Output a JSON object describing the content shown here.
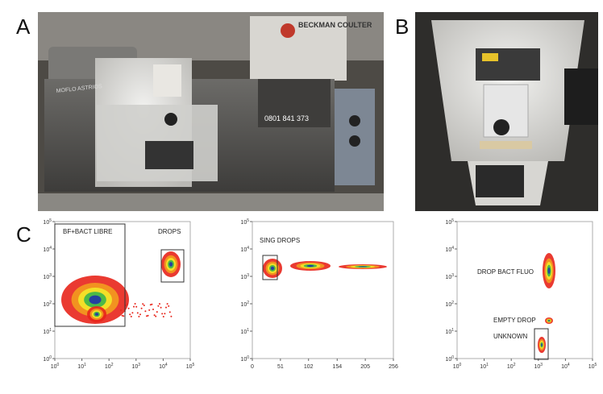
{
  "panels": {
    "a": "A",
    "b": "B",
    "c": "C"
  },
  "photo_a": {
    "brand": "BECKMAN COULTER",
    "model": "MOFLO ASTRIOS",
    "phone": "0801 841 373"
  },
  "plots": [
    {
      "xlim": [
        1,
        100000
      ],
      "ylim": [
        1,
        100000
      ],
      "xlog": true,
      "xticks": [
        {
          "value": 1,
          "base": "10",
          "exp": "0"
        },
        {
          "value": 10,
          "base": "10",
          "exp": "1"
        },
        {
          "value": 100,
          "base": "10",
          "exp": "2"
        },
        {
          "value": 1000,
          "base": "10",
          "exp": "3"
        },
        {
          "value": 10000,
          "base": "10",
          "exp": "4"
        },
        {
          "value": 100000,
          "base": "10",
          "exp": "5"
        }
      ],
      "yticks": [
        {
          "value": 1,
          "base": "10",
          "exp": "0"
        },
        {
          "value": 10,
          "base": "10",
          "exp": "1"
        },
        {
          "value": 100,
          "base": "10",
          "exp": "2"
        },
        {
          "value": 1000,
          "base": "10",
          "exp": "3"
        },
        {
          "value": 10000,
          "base": "10",
          "exp": "4"
        },
        {
          "value": 100000,
          "base": "10",
          "exp": "5"
        }
      ],
      "labels": [
        "BF+BACT LIBRE",
        "DROPS"
      ]
    },
    {
      "xlim": [
        0,
        256
      ],
      "ylim": [
        1,
        100000
      ],
      "xlog": false,
      "xticks": [
        0,
        51,
        102,
        154,
        205,
        256
      ],
      "yticks": [
        {
          "value": 1,
          "base": "10",
          "exp": "0"
        },
        {
          "value": 10,
          "base": "10",
          "exp": "1"
        },
        {
          "value": 100,
          "base": "10",
          "exp": "2"
        },
        {
          "value": 1000,
          "base": "10",
          "exp": "3"
        },
        {
          "value": 10000,
          "base": "10",
          "exp": "4"
        },
        {
          "value": 100000,
          "base": "10",
          "exp": "5"
        }
      ],
      "labels": [
        "SING DROPS"
      ]
    },
    {
      "xlim": [
        1,
        100000
      ],
      "ylim": [
        1,
        100000
      ],
      "xlog": true,
      "xticks": [
        {
          "value": 1,
          "base": "10",
          "exp": "0"
        },
        {
          "value": 10,
          "base": "10",
          "exp": "1"
        },
        {
          "value": 100,
          "base": "10",
          "exp": "2"
        },
        {
          "value": 1000,
          "base": "10",
          "exp": "3"
        },
        {
          "value": 10000,
          "base": "10",
          "exp": "4"
        },
        {
          "value": 100000,
          "base": "10",
          "exp": "5"
        }
      ],
      "yticks": [
        {
          "value": 1,
          "base": "10",
          "exp": "0"
        },
        {
          "value": 10,
          "base": "10",
          "exp": "1"
        },
        {
          "value": 100,
          "base": "10",
          "exp": "2"
        },
        {
          "value": 1000,
          "base": "10",
          "exp": "3"
        },
        {
          "value": 10000,
          "base": "10",
          "exp": "4"
        },
        {
          "value": 100000,
          "base": "10",
          "exp": "5"
        }
      ],
      "labels": [
        "DROP BACT FLUO",
        "EMPTY DROP",
        "UNKNOWN"
      ]
    }
  ]
}
